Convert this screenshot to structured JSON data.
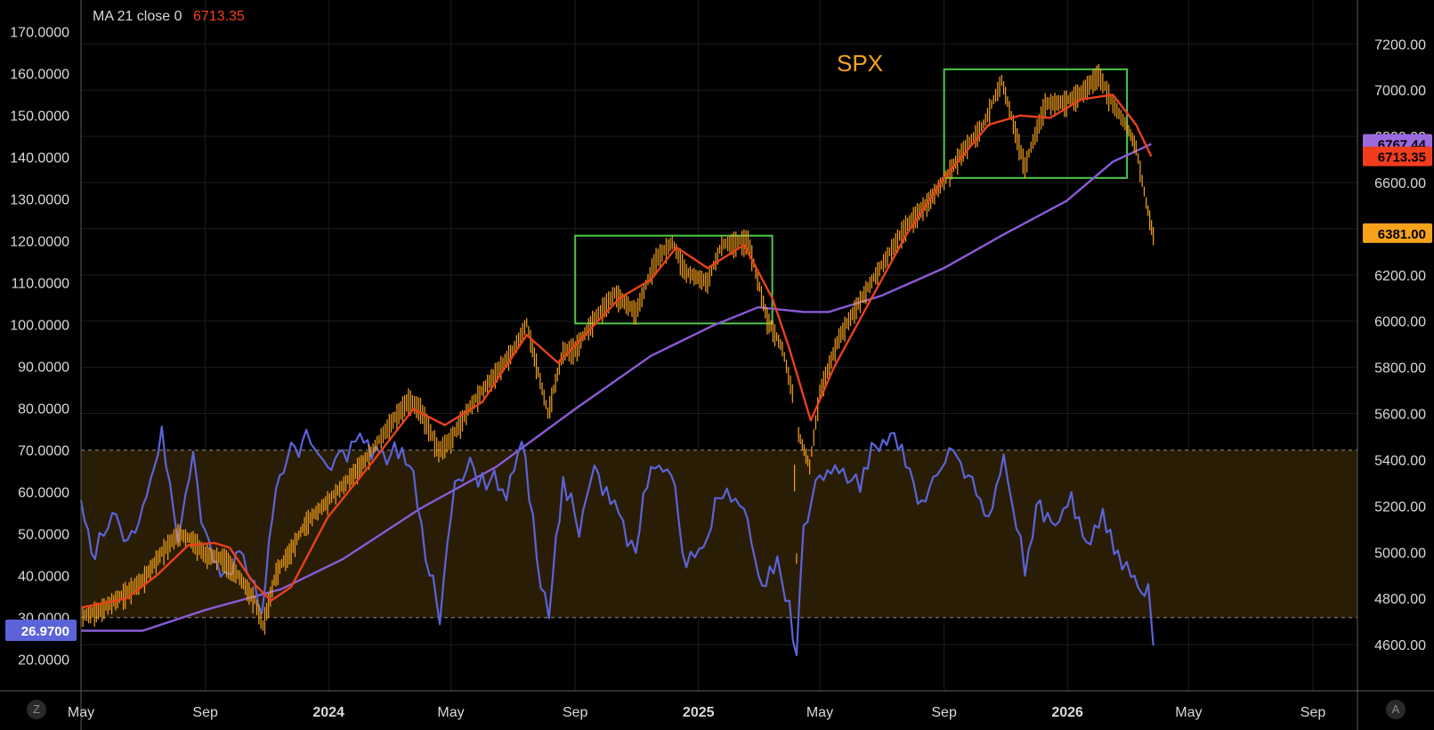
{
  "legend": {
    "label": "MA 21 close 0",
    "value": "6713.35"
  },
  "title": "SPX",
  "colors": {
    "price": "#f7a21b",
    "ma_fast": "#e8421c",
    "ma_slow": "#8a5bd6",
    "rsi": "#5b63d9",
    "box": "#4cc84a",
    "band_fill": "#2a1d05",
    "tag_purple": "#9c6ade",
    "tag_red": "#f23d1d",
    "tag_orange": "#f7a21b",
    "tag_blue": "#5b63d9"
  },
  "chart_data": {
    "type": "line",
    "title": "SPX",
    "x_range": [
      "2023-05-01",
      "2026-10-15"
    ],
    "time_labels": [
      {
        "date": "2023-05-01",
        "text": "May",
        "bold": false
      },
      {
        "date": "2023-09-01",
        "text": "Sep",
        "bold": false
      },
      {
        "date": "2024-01-01",
        "text": "2024",
        "bold": true
      },
      {
        "date": "2024-05-01",
        "text": "May",
        "bold": false
      },
      {
        "date": "2024-09-01",
        "text": "Sep",
        "bold": false
      },
      {
        "date": "2025-01-01",
        "text": "2025",
        "bold": true
      },
      {
        "date": "2025-05-01",
        "text": "May",
        "bold": false
      },
      {
        "date": "2025-09-01",
        "text": "Sep",
        "bold": false
      },
      {
        "date": "2026-01-01",
        "text": "2026",
        "bold": true
      },
      {
        "date": "2026-05-01",
        "text": "May",
        "bold": false
      },
      {
        "date": "2026-09-01",
        "text": "Sep",
        "bold": false
      }
    ],
    "right_axis": {
      "name": "SPX price",
      "range": [
        4400,
        7390
      ],
      "ticks": [
        "7200.00",
        "7000.00",
        "6800.00",
        "6600.00",
        "6400.00",
        "6200.00",
        "6000.00",
        "5800.00",
        "5600.00",
        "5400.00",
        "5200.00",
        "5000.00",
        "4800.00",
        "4600.00"
      ]
    },
    "left_axis": {
      "name": "RSI",
      "range": [
        12.5,
        177.5
      ],
      "ticks": [
        "170.0000",
        "160.0000",
        "150.0000",
        "140.0000",
        "130.0000",
        "120.0000",
        "110.0000",
        "100.0000",
        "90.0000",
        "80.0000",
        "70.0000",
        "60.0000",
        "50.0000",
        "40.0000",
        "30.0000",
        "20.0000"
      ]
    },
    "rsi_band": [
      30,
      70
    ],
    "price_tags": [
      {
        "text": "6767.44",
        "value": 6767.44,
        "color_key": "tag_purple"
      },
      {
        "text": "6713.35",
        "value": 6713.35,
        "color_key": "tag_red"
      },
      {
        "text": "6381.00",
        "value": 6381.0,
        "color_key": "tag_orange"
      }
    ],
    "rsi_tag": {
      "text": "26.9700",
      "value": 26.97
    },
    "boxes": [
      {
        "x0": "2024-09-01",
        "x1": "2025-03-15",
        "y0": 5990,
        "y1": 6370
      },
      {
        "x0": "2025-09-01",
        "x1": "2026-03-01",
        "y0": 6620,
        "y1": 7090
      }
    ],
    "series": [
      {
        "style": "bars",
        "key": "price",
        "points": [
          [
            "2023-05-01",
            4730
          ],
          [
            "2023-05-20",
            4760
          ],
          [
            "2023-06-10",
            4820
          ],
          [
            "2023-07-01",
            4890
          ],
          [
            "2023-07-20",
            5010
          ],
          [
            "2023-08-05",
            5090
          ],
          [
            "2023-08-20",
            5060
          ],
          [
            "2023-09-01",
            5000
          ],
          [
            "2023-09-20",
            4980
          ],
          [
            "2023-10-05",
            4900
          ],
          [
            "2023-10-20",
            4800
          ],
          [
            "2023-10-28",
            4690
          ],
          [
            "2023-11-10",
            4920
          ],
          [
            "2023-11-25",
            5020
          ],
          [
            "2023-12-10",
            5140
          ],
          [
            "2023-12-31",
            5230
          ],
          [
            "2024-01-20",
            5320
          ],
          [
            "2024-02-10",
            5430
          ],
          [
            "2024-03-01",
            5560
          ],
          [
            "2024-03-20",
            5670
          ],
          [
            "2024-04-01",
            5630
          ],
          [
            "2024-04-19",
            5450
          ],
          [
            "2024-05-01",
            5500
          ],
          [
            "2024-05-20",
            5640
          ],
          [
            "2024-06-10",
            5760
          ],
          [
            "2024-07-01",
            5880
          ],
          [
            "2024-07-15",
            6000
          ],
          [
            "2024-08-05",
            5610
          ],
          [
            "2024-08-20",
            5880
          ],
          [
            "2024-09-01",
            5890
          ],
          [
            "2024-09-20",
            6020
          ],
          [
            "2024-10-10",
            6130
          ],
          [
            "2024-10-31",
            6050
          ],
          [
            "2024-11-20",
            6280
          ],
          [
            "2024-12-06",
            6350
          ],
          [
            "2024-12-20",
            6220
          ],
          [
            "2025-01-10",
            6180
          ],
          [
            "2025-01-24",
            6340
          ],
          [
            "2025-02-19",
            6360
          ],
          [
            "2025-03-10",
            6020
          ],
          [
            "2025-03-25",
            5890
          ],
          [
            "2025-04-04",
            5700
          ],
          [
            "2025-04-08",
            4980
          ],
          [
            "2025-04-10",
            5520
          ],
          [
            "2025-04-21",
            5380
          ],
          [
            "2025-05-01",
            5700
          ],
          [
            "2025-05-20",
            5940
          ],
          [
            "2025-06-10",
            6100
          ],
          [
            "2025-07-01",
            6250
          ],
          [
            "2025-07-25",
            6420
          ],
          [
            "2025-08-15",
            6520
          ],
          [
            "2025-09-01",
            6620
          ],
          [
            "2025-09-20",
            6750
          ],
          [
            "2025-10-10",
            6860
          ],
          [
            "2025-10-28",
            7050
          ],
          [
            "2025-11-20",
            6680
          ],
          [
            "2025-12-10",
            6950
          ],
          [
            "2025-12-31",
            6960
          ],
          [
            "2026-01-15",
            7000
          ],
          [
            "2026-02-01",
            7080
          ],
          [
            "2026-02-15",
            6950
          ],
          [
            "2026-03-01",
            6850
          ],
          [
            "2026-03-10",
            6760
          ],
          [
            "2026-03-20",
            6520
          ],
          [
            "2026-03-27",
            6381
          ]
        ]
      },
      {
        "style": "line",
        "key": "ma_fast",
        "points": [
          [
            "2023-05-01",
            4760
          ],
          [
            "2023-06-15",
            4800
          ],
          [
            "2023-07-15",
            4900
          ],
          [
            "2023-08-15",
            5030
          ],
          [
            "2023-09-10",
            5040
          ],
          [
            "2023-09-25",
            5020
          ],
          [
            "2023-10-20",
            4860
          ],
          [
            "2023-11-05",
            4790
          ],
          [
            "2023-11-25",
            4850
          ],
          [
            "2023-12-31",
            5150
          ],
          [
            "2024-02-15",
            5400
          ],
          [
            "2024-03-25",
            5620
          ],
          [
            "2024-04-25",
            5550
          ],
          [
            "2024-06-01",
            5650
          ],
          [
            "2024-07-15",
            5940
          ],
          [
            "2024-08-15",
            5820
          ],
          [
            "2024-09-15",
            5960
          ],
          [
            "2024-10-15",
            6100
          ],
          [
            "2024-11-15",
            6180
          ],
          [
            "2024-12-10",
            6320
          ],
          [
            "2025-01-10",
            6230
          ],
          [
            "2025-02-15",
            6330
          ],
          [
            "2025-03-15",
            6100
          ],
          [
            "2025-04-01",
            5880
          ],
          [
            "2025-04-22",
            5570
          ],
          [
            "2025-05-15",
            5800
          ],
          [
            "2025-06-15",
            6050
          ],
          [
            "2025-07-25",
            6370
          ],
          [
            "2025-09-01",
            6620
          ],
          [
            "2025-10-15",
            6850
          ],
          [
            "2025-11-15",
            6890
          ],
          [
            "2025-12-15",
            6880
          ],
          [
            "2026-01-15",
            6960
          ],
          [
            "2026-02-15",
            6980
          ],
          [
            "2026-03-10",
            6850
          ],
          [
            "2026-03-25",
            6713
          ]
        ]
      },
      {
        "style": "line",
        "key": "ma_slow",
        "points": [
          [
            "2023-05-01",
            4660
          ],
          [
            "2023-07-01",
            4660
          ],
          [
            "2023-09-01",
            4750
          ],
          [
            "2023-11-15",
            4840
          ],
          [
            "2024-01-15",
            4970
          ],
          [
            "2024-04-01",
            5190
          ],
          [
            "2024-06-15",
            5370
          ],
          [
            "2024-09-01",
            5620
          ],
          [
            "2024-11-15",
            5850
          ],
          [
            "2025-01-15",
            5980
          ],
          [
            "2025-03-01",
            6060
          ],
          [
            "2025-04-15",
            6040
          ],
          [
            "2025-05-10",
            6040
          ],
          [
            "2025-07-01",
            6110
          ],
          [
            "2025-09-01",
            6230
          ],
          [
            "2025-11-01",
            6380
          ],
          [
            "2025-12-31",
            6520
          ],
          [
            "2026-02-15",
            6690
          ],
          [
            "2026-03-25",
            6767
          ]
        ]
      },
      {
        "style": "line",
        "key": "rsi",
        "axis": "left",
        "points": [
          [
            "2023-05-01",
            58
          ],
          [
            "2023-05-15",
            44
          ],
          [
            "2023-06-01",
            55
          ],
          [
            "2023-06-20",
            47
          ],
          [
            "2023-07-05",
            60
          ],
          [
            "2023-07-20",
            72
          ],
          [
            "2023-08-05",
            49
          ],
          [
            "2023-08-20",
            68
          ],
          [
            "2023-09-05",
            45
          ],
          [
            "2023-09-20",
            38
          ],
          [
            "2023-10-05",
            48
          ],
          [
            "2023-10-27",
            30
          ],
          [
            "2023-11-10",
            62
          ],
          [
            "2023-11-25",
            70
          ],
          [
            "2023-12-10",
            73
          ],
          [
            "2023-12-31",
            66
          ],
          [
            "2024-01-15",
            70
          ],
          [
            "2024-02-01",
            74
          ],
          [
            "2024-02-20",
            70
          ],
          [
            "2024-03-10",
            68
          ],
          [
            "2024-03-25",
            65
          ],
          [
            "2024-04-10",
            40
          ],
          [
            "2024-04-20",
            31
          ],
          [
            "2024-05-05",
            62
          ],
          [
            "2024-05-20",
            66
          ],
          [
            "2024-06-05",
            64
          ],
          [
            "2024-06-25",
            58
          ],
          [
            "2024-07-10",
            72
          ],
          [
            "2024-07-25",
            44
          ],
          [
            "2024-08-06",
            32
          ],
          [
            "2024-08-20",
            60
          ],
          [
            "2024-09-05",
            52
          ],
          [
            "2024-09-20",
            66
          ],
          [
            "2024-10-10",
            58
          ],
          [
            "2024-10-31",
            46
          ],
          [
            "2024-11-15",
            66
          ],
          [
            "2024-12-05",
            64
          ],
          [
            "2024-12-20",
            42
          ],
          [
            "2025-01-10",
            48
          ],
          [
            "2025-01-25",
            62
          ],
          [
            "2025-02-15",
            56
          ],
          [
            "2025-03-05",
            36
          ],
          [
            "2025-03-20",
            42
          ],
          [
            "2025-04-01",
            34
          ],
          [
            "2025-04-08",
            21
          ],
          [
            "2025-04-15",
            52
          ],
          [
            "2025-05-01",
            64
          ],
          [
            "2025-05-20",
            67
          ],
          [
            "2025-06-10",
            60
          ],
          [
            "2025-06-25",
            71
          ],
          [
            "2025-07-10",
            74
          ],
          [
            "2025-07-25",
            66
          ],
          [
            "2025-08-10",
            58
          ],
          [
            "2025-08-25",
            64
          ],
          [
            "2025-09-10",
            70
          ],
          [
            "2025-09-25",
            64
          ],
          [
            "2025-10-15",
            52
          ],
          [
            "2025-10-30",
            68
          ],
          [
            "2025-11-20",
            40
          ],
          [
            "2025-12-05",
            58
          ],
          [
            "2025-12-20",
            52
          ],
          [
            "2026-01-05",
            60
          ],
          [
            "2026-01-20",
            48
          ],
          [
            "2026-02-05",
            56
          ],
          [
            "2026-02-20",
            46
          ],
          [
            "2026-03-05",
            42
          ],
          [
            "2026-03-15",
            36
          ],
          [
            "2026-03-22",
            38
          ],
          [
            "2026-03-27",
            27
          ]
        ]
      }
    ]
  },
  "bottom_buttons": {
    "left": "Z",
    "right": "A"
  }
}
